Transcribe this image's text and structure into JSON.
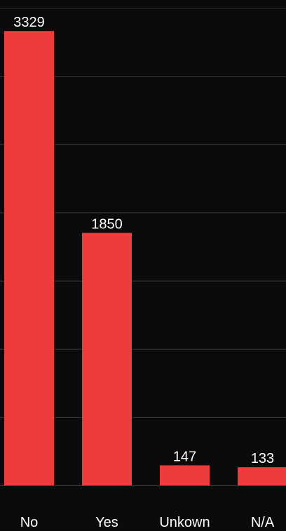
{
  "chart_data": {
    "type": "bar",
    "categories": [
      "No",
      "Yes",
      "Unkown",
      "N/A"
    ],
    "values": [
      3329,
      1850,
      147,
      133
    ],
    "color": "#ee3b3b",
    "ylim": [
      0,
      3500
    ],
    "yticks": [
      0,
      500,
      1000,
      1500,
      2000,
      2500,
      3000,
      3500
    ],
    "grid": true
  }
}
